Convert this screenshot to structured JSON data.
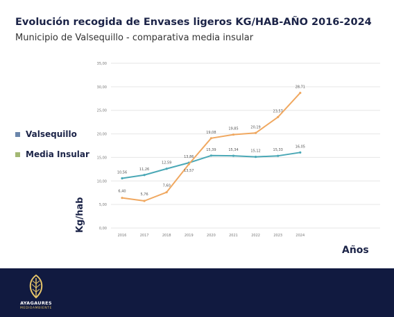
{
  "chart_data": {
    "type": "line",
    "title": "Evolución recogida de Envases ligeros KG/HAB-AÑO  2016-2024",
    "subtitle": "Municipio de Valsequillo - comparativa media insular",
    "xlabel": "Años",
    "ylabel": "Kg/hab",
    "ylim": [
      0,
      35
    ],
    "grid": true,
    "legend": "left",
    "categories": [
      "2016",
      "2017",
      "2018",
      "2019",
      "2020",
      "2021",
      "2022",
      "2023",
      "2024"
    ],
    "y_ticks": [
      "0,00",
      "5,00",
      "10,00",
      "15,00",
      "20,00",
      "25,00",
      "30,00",
      "35,00"
    ],
    "series": [
      {
        "name": "Valsequillo",
        "line_color": "#4aa8b6",
        "legend_color": "#6b86ab",
        "values": [
          10.56,
          11.26,
          12.59,
          13.86,
          15.39,
          15.34,
          15.12,
          15.33,
          16.05
        ],
        "labels": [
          "10,56",
          "11,26",
          "12,59",
          "13,86",
          "15,39",
          "15,34",
          "15,12",
          "15,33",
          "16,05"
        ]
      },
      {
        "name": "Media Insular",
        "line_color": "#f0a860",
        "legend_color": "#a3b874",
        "values": [
          6.4,
          5.76,
          7.6,
          13.57,
          19.08,
          19.85,
          20.19,
          23.57,
          28.71
        ],
        "labels": [
          "6,40",
          "5,76",
          "7,60",
          "13,57",
          "19,08",
          "19,85",
          "20,19",
          "23,57",
          "28,71"
        ]
      }
    ]
  },
  "footer": {
    "brand": "AYAGAURES",
    "brand_sub": "MEDIOAMBIENTE",
    "icon": "leaf-icon"
  }
}
